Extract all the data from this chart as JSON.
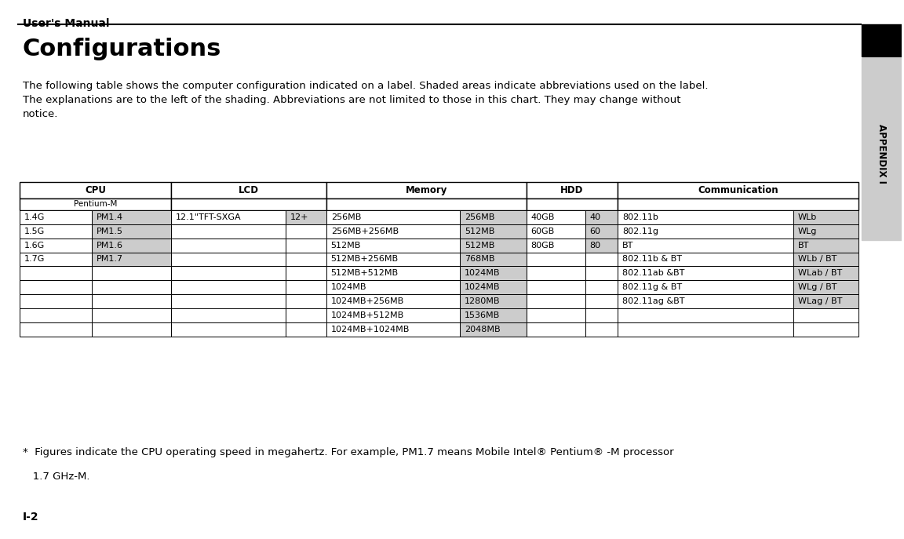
{
  "page_title": "User's Manual",
  "section_title": "Configurations",
  "body_text": "The following table shows the computer configuration indicated on a label. Shaded areas indicate abbreviations used on the label.\nThe explanations are to the left of the shading. Abbreviations are not limited to those in this chart. They may change without\nnotice.",
  "page_label": "I-2",
  "appendix_label": "APPENDIX I",
  "bg_color": "#ffffff",
  "shade_color": "#cccccc",
  "cpu_rows": [
    {
      "label": "1.4G",
      "abbrev": "PM1.4"
    },
    {
      "label": "1.5G",
      "abbrev": "PM1.5"
    },
    {
      "label": "1.6G",
      "abbrev": "PM1.6"
    },
    {
      "label": "1.7G",
      "abbrev": "PM1.7"
    }
  ],
  "lcd_label": "12.1\"TFT-SXGA",
  "lcd_abbrev": "12+",
  "memory_rows": [
    {
      "label": "256MB",
      "abbrev": "256MB"
    },
    {
      "label": "256MB+256MB",
      "abbrev": "512MB"
    },
    {
      "label": "512MB",
      "abbrev": "512MB"
    },
    {
      "label": "512MB+256MB",
      "abbrev": "768MB"
    },
    {
      "label": "512MB+512MB",
      "abbrev": "1024MB"
    },
    {
      "label": "1024MB",
      "abbrev": "1024MB"
    },
    {
      "label": "1024MB+256MB",
      "abbrev": "1280MB"
    },
    {
      "label": "1024MB+512MB",
      "abbrev": "1536MB"
    },
    {
      "label": "1024MB+1024MB",
      "abbrev": "2048MB"
    }
  ],
  "hdd_rows": [
    {
      "label": "40GB",
      "abbrev": "40"
    },
    {
      "label": "60GB",
      "abbrev": "60"
    },
    {
      "label": "80GB",
      "abbrev": "80"
    }
  ],
  "comm_rows": [
    {
      "label": "802.11b",
      "abbrev": "WLb"
    },
    {
      "label": "802.11g",
      "abbrev": "WLg"
    },
    {
      "label": "BT",
      "abbrev": "BT"
    },
    {
      "label": "802.11b & BT",
      "abbrev": "WLb / BT"
    },
    {
      "label": "802.11ab &BT",
      "abbrev": "WLab / BT"
    },
    {
      "label": "802.11g & BT",
      "abbrev": "WLg / BT"
    },
    {
      "label": "802.11ag &BT",
      "abbrev": "WLag / BT"
    }
  ],
  "footer_line1": "*  Figures indicate the CPU operating speed in megahertz. For example, PM1.7 means Mobile Intel® Pentium® -M processor",
  "footer_line2": "   1.7 GHz-M."
}
